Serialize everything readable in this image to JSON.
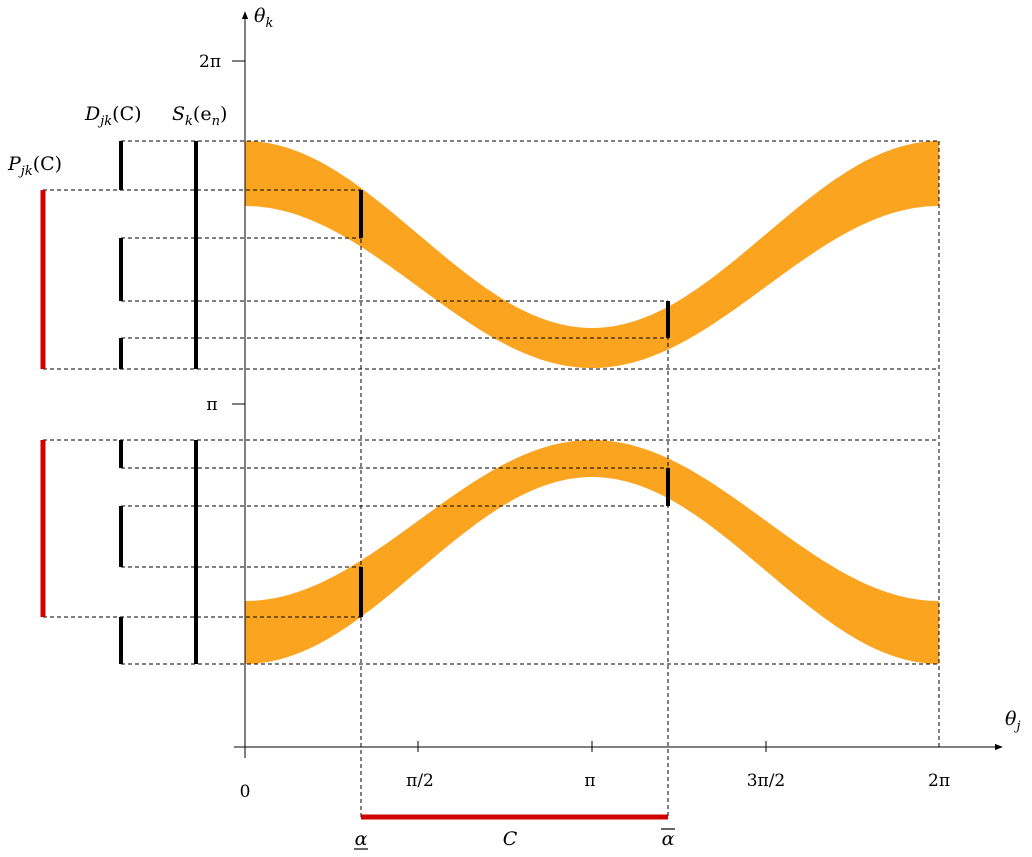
{
  "axes": {
    "x_label": {
      "base": "θ",
      "sub": "j"
    },
    "y_label": {
      "base": "θ",
      "sub": "k"
    },
    "x_ticks": [
      "0",
      "π/2",
      "π",
      "3π/2",
      "2π"
    ],
    "y_ticks": [
      "π",
      "2π"
    ]
  },
  "labels": {
    "D": {
      "base": "D",
      "sub": "jk",
      "arg": "(C)"
    },
    "S": {
      "base": "S",
      "sub": "k",
      "arg": "(e",
      "arg_sub": "n",
      "arg_close": ")"
    },
    "P": {
      "base": "P",
      "sub": "jk",
      "arg": "(C)"
    }
  },
  "interval": {
    "name": "C",
    "alpha_low": "α",
    "alpha_high": "α",
    "alpha_low_value_rad": 1.04,
    "alpha_high_value_rad": 3.79
  },
  "colors": {
    "band": "#fba41f",
    "highlight": "#d00000",
    "ink": "#000000"
  }
}
